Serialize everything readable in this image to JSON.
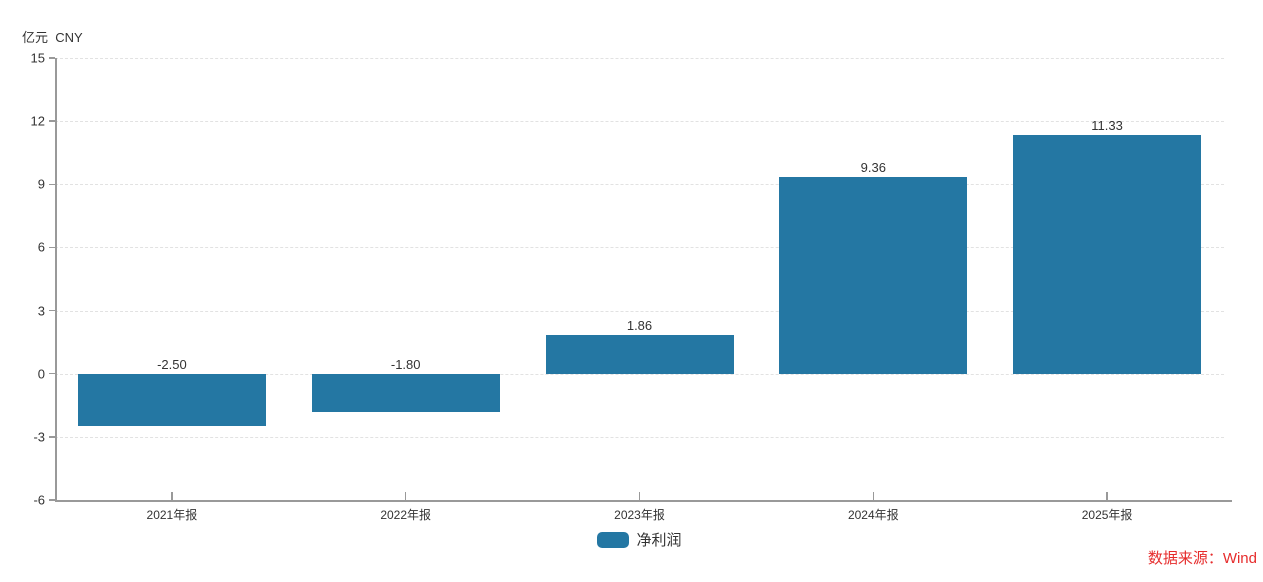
{
  "chart": {
    "unit_label": "亿元  CNY",
    "legend_label": "净利润",
    "source": "数据来源：Wind"
  },
  "colors": {
    "bar": "#2477a3",
    "axis": "#999999",
    "grid": "#e2e2e2",
    "text": "#333333",
    "source_text": "#e62c2c"
  },
  "chart_data": {
    "type": "bar",
    "title": "",
    "categories": [
      "2021年报",
      "2022年报",
      "2023年报",
      "2024年报",
      "2025年报"
    ],
    "values": [
      -2.5,
      -1.8,
      1.86,
      9.36,
      11.33
    ],
    "value_labels": [
      "-2.50",
      "-1.80",
      "1.86",
      "9.36",
      "11.33"
    ],
    "series": [
      {
        "name": "净利润",
        "values": [
          -2.5,
          -1.8,
          1.86,
          9.36,
          11.33
        ]
      }
    ],
    "xlabel": "",
    "ylabel": "亿元 CNY",
    "ylim": [
      -6,
      15
    ],
    "yticks": [
      15,
      12,
      9,
      6,
      3,
      0,
      -3,
      -6
    ],
    "grid": true,
    "legend_position": "bottom",
    "source": "数据来源：Wind"
  }
}
